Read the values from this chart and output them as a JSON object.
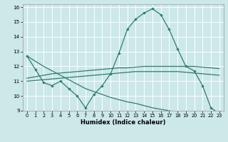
{
  "xlabel": "Humidex (Indice chaleur)",
  "xlim": [
    -0.5,
    23.5
  ],
  "ylim": [
    9,
    16.2
  ],
  "yticks": [
    9,
    10,
    11,
    12,
    13,
    14,
    15,
    16
  ],
  "xticks": [
    0,
    1,
    2,
    3,
    4,
    5,
    6,
    7,
    8,
    9,
    10,
    11,
    12,
    13,
    14,
    15,
    16,
    17,
    18,
    19,
    20,
    21,
    22,
    23
  ],
  "bg_color": "#cce8e8",
  "grid_color": "#ffffff",
  "line_color": "#2e7d6e",
  "curve": [
    12.7,
    11.8,
    10.9,
    10.7,
    11.0,
    10.5,
    10.0,
    9.2,
    10.1,
    10.7,
    11.5,
    12.9,
    14.5,
    15.2,
    15.6,
    15.9,
    15.5,
    14.5,
    13.2,
    12.0,
    11.7,
    10.7,
    9.2,
    8.8
  ],
  "line_diag": [
    12.7,
    12.35,
    12.0,
    11.7,
    11.4,
    11.1,
    10.8,
    10.5,
    10.3,
    10.1,
    9.9,
    9.75,
    9.6,
    9.5,
    9.35,
    9.2,
    9.1,
    9.0,
    8.9,
    8.85,
    8.8,
    8.78,
    8.75,
    8.75
  ],
  "line_upper": [
    11.2,
    11.3,
    11.4,
    11.5,
    11.55,
    11.6,
    11.65,
    11.7,
    11.75,
    11.8,
    11.85,
    11.9,
    11.9,
    11.95,
    12.0,
    12.0,
    12.0,
    12.0,
    12.0,
    12.0,
    12.0,
    11.95,
    11.9,
    11.85
  ],
  "line_lower": [
    11.0,
    11.05,
    11.1,
    11.15,
    11.2,
    11.25,
    11.3,
    11.35,
    11.4,
    11.45,
    11.5,
    11.55,
    11.6,
    11.65,
    11.65,
    11.65,
    11.65,
    11.65,
    11.65,
    11.6,
    11.55,
    11.5,
    11.45,
    11.4
  ]
}
